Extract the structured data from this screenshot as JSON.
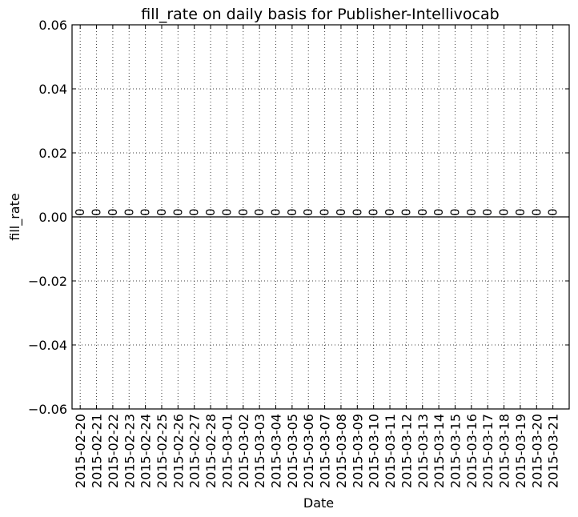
{
  "chart_data": {
    "type": "bar",
    "title": "fill_rate on daily basis for Publisher-Intellivocab",
    "xlabel": "Date",
    "ylabel": "fill_rate",
    "ylim": [
      -0.06,
      0.06
    ],
    "yticks": [
      0.06,
      0.04,
      0.02,
      0.0,
      -0.02,
      -0.04,
      -0.06
    ],
    "ytick_labels": [
      "0.06",
      "0.04",
      "0.02",
      "0.00",
      "−0.02",
      "−0.04",
      "−0.06"
    ],
    "grid": true,
    "categories": [
      "2015-02-20",
      "2015-02-21",
      "2015-02-22",
      "2015-02-23",
      "2015-02-24",
      "2015-02-25",
      "2015-02-26",
      "2015-02-27",
      "2015-02-28",
      "2015-03-01",
      "2015-03-02",
      "2015-03-03",
      "2015-03-04",
      "2015-03-05",
      "2015-03-06",
      "2015-03-07",
      "2015-03-08",
      "2015-03-09",
      "2015-03-10",
      "2015-03-11",
      "2015-03-12",
      "2015-03-13",
      "2015-03-14",
      "2015-03-15",
      "2015-03-16",
      "2015-03-17",
      "2015-03-18",
      "2015-03-19",
      "2015-03-20",
      "2015-03-21"
    ],
    "values": [
      0,
      0,
      0,
      0,
      0,
      0,
      0,
      0,
      0,
      0,
      0,
      0,
      0,
      0,
      0,
      0,
      0,
      0,
      0,
      0,
      0,
      0,
      0,
      0,
      0,
      0,
      0,
      0,
      0,
      0
    ],
    "data_labels": [
      "0",
      "0",
      "0",
      "0",
      "0",
      "0",
      "0",
      "0",
      "0",
      "0",
      "0",
      "0",
      "0",
      "0",
      "0",
      "0",
      "0",
      "0",
      "0",
      "0",
      "0",
      "0",
      "0",
      "0",
      "0",
      "0",
      "0",
      "0",
      "0",
      "0"
    ]
  }
}
